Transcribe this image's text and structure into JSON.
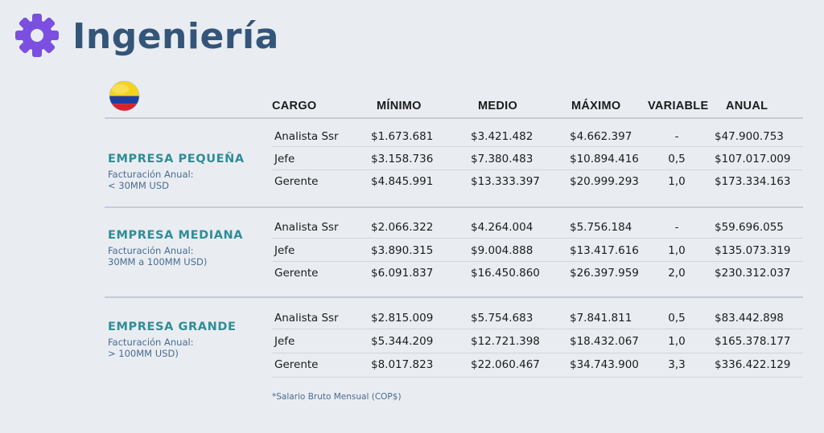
{
  "page": {
    "title": "Ingeniería",
    "footnote": "*Salario Bruto Mensual (COP$)"
  },
  "table": {
    "headers": {
      "cargo": "CARGO",
      "minimo": "MÍNIMO",
      "medio": "MEDIO",
      "maximo": "MÁXIMO",
      "variable": "VARIABLE",
      "anual": "ANUAL"
    },
    "sections": [
      {
        "title": "EMPRESA PEQUEÑA",
        "subtitle": "Facturación Anual:\n< 30MM USD",
        "rows": [
          {
            "cargo": "Analista Ssr",
            "minimo": "$1.673.681",
            "medio": "$3.421.482",
            "maximo": "$4.662.397",
            "variable": "-",
            "anual": "$47.900.753"
          },
          {
            "cargo": "Jefe",
            "minimo": "$3.158.736",
            "medio": "$7.380.483",
            "maximo": "$10.894.416",
            "variable": "0,5",
            "anual": "$107.017.009"
          },
          {
            "cargo": "Gerente",
            "minimo": "$4.845.991",
            "medio": "$13.333.397",
            "maximo": "$20.999.293",
            "variable": "1,0",
            "anual": "$173.334.163"
          }
        ]
      },
      {
        "title": "EMPRESA MEDIANA",
        "subtitle": "Facturación Anual:\n30MM a 100MM USD)",
        "rows": [
          {
            "cargo": "Analista Ssr",
            "minimo": "$2.066.322",
            "medio": "$4.264.004",
            "maximo": "$5.756.184",
            "variable": "-",
            "anual": "$59.696.055"
          },
          {
            "cargo": "Jefe",
            "minimo": "$3.890.315",
            "medio": "$9.004.888",
            "maximo": "$13.417.616",
            "variable": "1,0",
            "anual": "$135.073.319"
          },
          {
            "cargo": "Gerente",
            "minimo": "$6.091.837",
            "medio": "$16.450.860",
            "maximo": "$26.397.959",
            "variable": "2,0",
            "anual": "$230.312.037"
          }
        ]
      },
      {
        "title": "EMPRESA GRANDE",
        "subtitle": "Facturación Anual:\n> 100MM USD)",
        "rows": [
          {
            "cargo": "Analista Ssr",
            "minimo": "$2.815.009",
            "medio": "$5.754.683",
            "maximo": "$7.841.811",
            "variable": "0,5",
            "anual": "$83.442.898"
          },
          {
            "cargo": "Jefe",
            "minimo": "$5.344.209",
            "medio": "$12.721.398",
            "maximo": "$18.432.067",
            "variable": "1,0",
            "anual": "$165.378.177"
          },
          {
            "cargo": "Gerente",
            "minimo": "$8.017.823",
            "medio": "$22.060.467",
            "maximo": "$34.743.900",
            "variable": "3,3",
            "anual": "$336.422.129"
          }
        ]
      }
    ]
  },
  "colors": {
    "title": "#34557a",
    "section_title": "#2f8d97",
    "gear": "#7b4fe0",
    "flag": [
      "#f5d31c",
      "#1f3f9e",
      "#d8222c"
    ]
  },
  "icons": [
    "gear-icon",
    "colombia-flag-icon"
  ]
}
